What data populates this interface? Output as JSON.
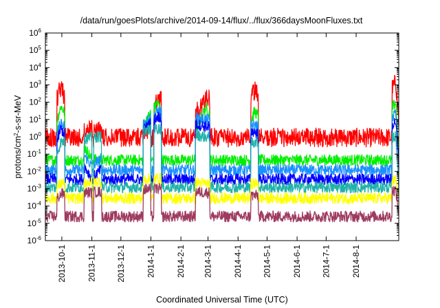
{
  "chart_data": {
    "type": "line",
    "title": "/data/run/goesPlots/archive/2014-09-14/flux/../flux/366daysMoonFluxes.txt",
    "xlabel": "Coordinated Universal Time (UTC)",
    "ylabel_main": "protons/cm",
    "ylabel_sup": "2",
    "ylabel_tail": "-s-sr-MeV",
    "yscale": "log",
    "ylim": [
      1e-06,
      1000000.0
    ],
    "xlim": [
      "2013-09-14",
      "2014-09-14"
    ],
    "grid": false,
    "legend": "none",
    "y_ticks": [
      {
        "base": "10",
        "exp": "-6",
        "value": 1e-06
      },
      {
        "base": "10",
        "exp": "-5",
        "value": 1e-05
      },
      {
        "base": "10",
        "exp": "-4",
        "value": 0.0001
      },
      {
        "base": "10",
        "exp": "-3",
        "value": 0.001
      },
      {
        "base": "10",
        "exp": "-2",
        "value": 0.01
      },
      {
        "base": "10",
        "exp": "-1",
        "value": 0.1
      },
      {
        "base": "10",
        "exp": "0",
        "value": 1
      },
      {
        "base": "10",
        "exp": "1",
        "value": 10
      },
      {
        "base": "10",
        "exp": "2",
        "value": 100
      },
      {
        "base": "10",
        "exp": "3",
        "value": 1000
      },
      {
        "base": "10",
        "exp": "4",
        "value": 10000
      },
      {
        "base": "10",
        "exp": "5",
        "value": 100000
      },
      {
        "base": "10",
        "exp": "6",
        "value": 1000000
      }
    ],
    "x_ticks": [
      {
        "label": "2013-10-1",
        "date": "2013-10-01"
      },
      {
        "label": "2013-11-1",
        "date": "2013-11-01"
      },
      {
        "label": "2013-12-1",
        "date": "2013-12-01"
      },
      {
        "label": "2014-1-1",
        "date": "2014-01-01"
      },
      {
        "label": "2014-2-1",
        "date": "2014-02-01"
      },
      {
        "label": "2014-3-1",
        "date": "2014-03-01"
      },
      {
        "label": "2014-4-1",
        "date": "2014-04-01"
      },
      {
        "label": "2014-5-1",
        "date": "2014-05-01"
      },
      {
        "label": "2014-6-1",
        "date": "2014-06-01"
      },
      {
        "label": "2014-7-1",
        "date": "2014-07-01"
      },
      {
        "label": "2014-8-1",
        "date": "2014-08-01"
      }
    ],
    "event_dates": [
      "2013-09-30",
      "2013-10-28",
      "2013-11-07",
      "2013-12-28",
      "2014-01-08",
      "2014-02-20",
      "2014-02-27",
      "2014-04-18",
      "2014-09-11"
    ],
    "series": [
      {
        "color": "#ff0000",
        "baseline": 0.9,
        "x": [
          "2013-09-14",
          "2013-09-30",
          "2013-10-15",
          "2013-11-01",
          "2013-12-01",
          "2014-01-01",
          "2014-01-08",
          "2014-02-01",
          "2014-03-01",
          "2014-04-01",
          "2014-04-18",
          "2014-05-15",
          "2014-06-15",
          "2014-07-15",
          "2014-08-15",
          "2014-09-11",
          "2014-09-14"
        ],
        "values": [
          1.5,
          800,
          2,
          3,
          1.5,
          3,
          250,
          1.5,
          200,
          2,
          500,
          1.2,
          0.8,
          1,
          2,
          1500,
          8
        ]
      },
      {
        "color": "#00ee00",
        "baseline": 0.045,
        "x": [
          "2013-09-14",
          "2013-09-30",
          "2013-11-01",
          "2013-12-01",
          "2014-01-08",
          "2014-02-01",
          "2014-02-27",
          "2014-04-01",
          "2014-04-18",
          "2014-06-01",
          "2014-08-01",
          "2014-09-11",
          "2014-09-14"
        ],
        "values": [
          0.03,
          60,
          0.05,
          0.04,
          100,
          0.04,
          50,
          0.05,
          30,
          0.02,
          0.03,
          100,
          0.1
        ]
      },
      {
        "color": "#1a90ff",
        "baseline": 0.012,
        "x": [
          "2013-09-14",
          "2013-09-30",
          "2013-11-01",
          "2014-01-08",
          "2014-02-27",
          "2014-04-18",
          "2014-07-01",
          "2014-09-11",
          "2014-09-14"
        ],
        "values": [
          0.01,
          8,
          0.02,
          30,
          10,
          5,
          0.008,
          20,
          0.05
        ]
      },
      {
        "color": "#0000ff",
        "baseline": 0.0035,
        "x": [
          "2013-09-14",
          "2013-09-30",
          "2013-11-01",
          "2014-01-08",
          "2014-02-27",
          "2014-04-18",
          "2014-07-01",
          "2014-09-11",
          "2014-09-14"
        ],
        "values": [
          0.003,
          3,
          0.004,
          15,
          4,
          2,
          0.003,
          8,
          0.02
        ]
      },
      {
        "color": "#20b2aa",
        "baseline": 0.0012,
        "x": [
          "2013-09-14",
          "2013-09-30",
          "2014-01-08",
          "2014-02-27",
          "2014-04-18",
          "2014-09-11",
          "2014-09-14"
        ],
        "values": [
          0.001,
          0.5,
          3,
          1,
          0.5,
          1,
          0.002
        ]
      },
      {
        "color": "#ffff00",
        "baseline": 0.00028,
        "x": [
          "2013-09-14",
          "2013-09-30",
          "2014-01-08",
          "2014-02-27",
          "2014-04-18",
          "2014-09-11",
          "2014-09-14"
        ],
        "values": [
          0.0003,
          0.002,
          0.004,
          0.002,
          0.002,
          0.003,
          0.0004
        ]
      },
      {
        "color": "#9e3b5f",
        "baseline": 2.5e-05,
        "x": [
          "2013-09-14",
          "2013-09-30",
          "2014-01-08",
          "2014-02-27",
          "2014-04-18",
          "2014-09-11",
          "2014-09-14"
        ],
        "values": [
          3e-05,
          0.0005,
          0.001,
          0.0006,
          0.0004,
          0.0008,
          4e-05
        ]
      }
    ]
  }
}
